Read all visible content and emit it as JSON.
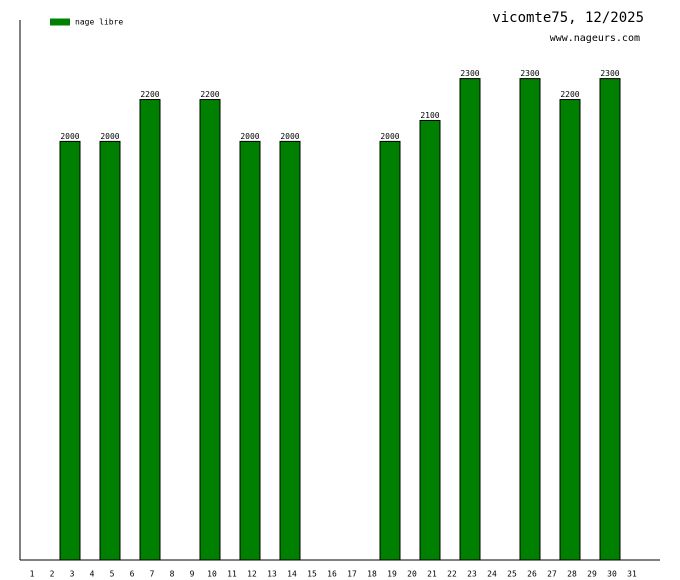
{
  "chart_data": {
    "type": "bar",
    "title": "vicomte75, 12/2025",
    "subtitle": "www.nageurs.com",
    "categories": [
      "1",
      "2",
      "3",
      "4",
      "5",
      "6",
      "7",
      "8",
      "9",
      "10",
      "11",
      "12",
      "13",
      "14",
      "15",
      "16",
      "17",
      "18",
      "19",
      "20",
      "21",
      "22",
      "23",
      "24",
      "25",
      "26",
      "27",
      "28",
      "29",
      "30",
      "31"
    ],
    "series": [
      {
        "name": "nage libre",
        "color": "#008000",
        "values": [
          null,
          null,
          2000,
          null,
          2000,
          null,
          2200,
          null,
          null,
          2200,
          null,
          2000,
          null,
          2000,
          null,
          null,
          null,
          null,
          2000,
          null,
          2100,
          null,
          2300,
          null,
          null,
          2300,
          null,
          2200,
          null,
          2300,
          null
        ]
      }
    ],
    "ylim": [
      0,
      2580
    ],
    "legend": "top-left"
  }
}
